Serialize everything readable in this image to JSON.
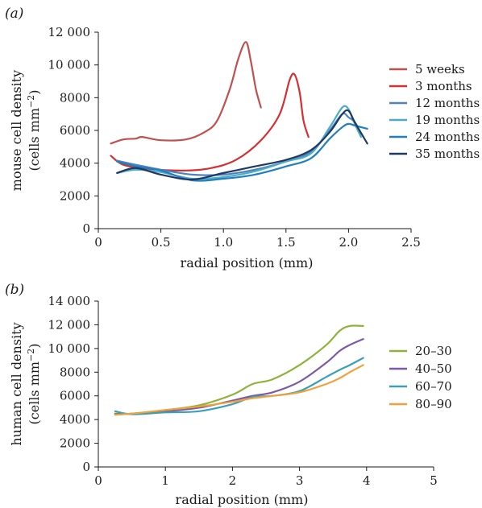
{
  "chart_data": [
    {
      "panel_label": "(a)",
      "type": "line",
      "xlabel": "radial position (mm)",
      "ylabel_line1": "mouse cell density",
      "ylabel_line2": "(cells mm",
      "ylabel_sup": "−2",
      "ylabel_close": ")",
      "xlim": [
        0,
        2.5
      ],
      "ylim": [
        0,
        12000
      ],
      "x_ticks": [
        0,
        0.5,
        1.0,
        1.5,
        2.0,
        2.5
      ],
      "x_tick_labels": [
        "0",
        "0.5",
        "1.0",
        "1.5",
        "2.0",
        "2.5"
      ],
      "y_ticks": [
        0,
        2000,
        4000,
        6000,
        8000,
        10000,
        12000
      ],
      "y_tick_labels": [
        "0",
        "2000",
        "4000",
        "6000",
        "8000",
        "10 000",
        "12 000"
      ],
      "grid": false,
      "legend_position": "right",
      "series": [
        {
          "name": "5 weeks",
          "color": "#c0504d",
          "x": [
            0.1,
            0.2,
            0.3,
            0.35,
            0.5,
            0.7,
            0.85,
            0.95,
            1.05,
            1.12,
            1.18,
            1.22,
            1.26,
            1.3
          ],
          "y": [
            5200,
            5450,
            5500,
            5600,
            5400,
            5450,
            5900,
            6600,
            8500,
            10400,
            11400,
            10200,
            8500,
            7400
          ]
        },
        {
          "name": "3 months",
          "color": "#d62f30",
          "x": [
            0.1,
            0.2,
            0.4,
            0.7,
            0.9,
            1.1,
            1.3,
            1.45,
            1.53,
            1.57,
            1.61,
            1.64,
            1.68
          ],
          "y": [
            4450,
            3900,
            3650,
            3550,
            3700,
            4200,
            5400,
            7000,
            9100,
            9400,
            8300,
            6600,
            5600
          ]
        },
        {
          "name": "12 months",
          "color": "#4f81bd",
          "x": [
            0.15,
            0.3,
            0.5,
            0.75,
            1.0,
            1.25,
            1.5,
            1.7,
            1.85,
            1.95,
            2.0,
            2.05,
            2.1
          ],
          "y": [
            4150,
            3900,
            3600,
            3300,
            3300,
            3600,
            4100,
            4700,
            6000,
            7000,
            6800,
            6500,
            5800
          ]
        },
        {
          "name": "19 months",
          "color": "#4bacc6",
          "x": [
            0.15,
            0.3,
            0.5,
            0.75,
            1.0,
            1.25,
            1.5,
            1.7,
            1.85,
            1.95,
            2.0,
            2.05,
            2.1
          ],
          "y": [
            3400,
            3600,
            3450,
            3050,
            3150,
            3500,
            4100,
            4600,
            6200,
            7400,
            7300,
            6400,
            5600
          ]
        },
        {
          "name": "24 months",
          "color": "#1f7fbf",
          "x": [
            0.15,
            0.3,
            0.5,
            0.75,
            1.0,
            1.25,
            1.5,
            1.7,
            1.85,
            1.95,
            2.0,
            2.05,
            2.15
          ],
          "y": [
            4100,
            3800,
            3550,
            2950,
            3050,
            3300,
            3800,
            4300,
            5500,
            6200,
            6400,
            6300,
            6100
          ]
        },
        {
          "name": "35 months",
          "color": "#1f3864",
          "x": [
            0.15,
            0.3,
            0.5,
            0.75,
            1.0,
            1.25,
            1.5,
            1.7,
            1.85,
            1.95,
            2.0,
            2.05,
            2.15
          ],
          "y": [
            3400,
            3700,
            3300,
            3000,
            3400,
            3800,
            4200,
            4800,
            5900,
            7000,
            7200,
            6500,
            5200
          ]
        }
      ]
    },
    {
      "panel_label": "(b)",
      "type": "line",
      "xlabel": "radial position (mm)",
      "ylabel_line1": "human cell density",
      "ylabel_line2": "(cells mm",
      "ylabel_sup": "−2",
      "ylabel_close": ")",
      "xlim": [
        0,
        5
      ],
      "ylim": [
        0,
        14000
      ],
      "x_ticks": [
        0,
        1,
        2,
        3,
        4,
        5
      ],
      "x_tick_labels": [
        "0",
        "1",
        "2",
        "3",
        "4",
        "5"
      ],
      "y_ticks": [
        0,
        2000,
        4000,
        6000,
        8000,
        10000,
        12000,
        14000
      ],
      "y_tick_labels": [
        "0",
        "2000",
        "4000",
        "6000",
        "8000",
        "10 000",
        "12 000",
        "14 000"
      ],
      "grid": false,
      "legend_position": "right",
      "series": [
        {
          "name": "20–30",
          "color": "#8db33a",
          "x": [
            0.25,
            0.5,
            1.0,
            1.5,
            2.0,
            2.3,
            2.6,
            3.0,
            3.4,
            3.6,
            3.75,
            3.95
          ],
          "y": [
            4500,
            4500,
            4800,
            5200,
            6100,
            7000,
            7400,
            8600,
            10300,
            11500,
            11900,
            11900
          ]
        },
        {
          "name": "40–50",
          "color": "#7a5aa6",
          "x": [
            0.25,
            0.5,
            1.0,
            1.5,
            2.0,
            2.3,
            2.6,
            3.0,
            3.4,
            3.6,
            3.75,
            3.95
          ],
          "y": [
            4450,
            4500,
            4700,
            5000,
            5600,
            6000,
            6300,
            7200,
            8800,
            9800,
            10300,
            10800
          ]
        },
        {
          "name": "60–70",
          "color": "#3aa0b8",
          "x": [
            0.25,
            0.5,
            1.0,
            1.5,
            2.0,
            2.3,
            2.6,
            3.0,
            3.4,
            3.6,
            3.75,
            3.95
          ],
          "y": [
            4700,
            4450,
            4600,
            4700,
            5300,
            5900,
            6000,
            6400,
            7600,
            8200,
            8600,
            9200
          ]
        },
        {
          "name": "80–90",
          "color": "#f0a03c",
          "x": [
            0.25,
            0.5,
            1.0,
            1.5,
            2.0,
            2.3,
            2.6,
            3.0,
            3.4,
            3.6,
            3.75,
            3.95
          ],
          "y": [
            4400,
            4500,
            4800,
            5100,
            5500,
            5800,
            6000,
            6300,
            7000,
            7500,
            8000,
            8600
          ]
        }
      ]
    }
  ]
}
